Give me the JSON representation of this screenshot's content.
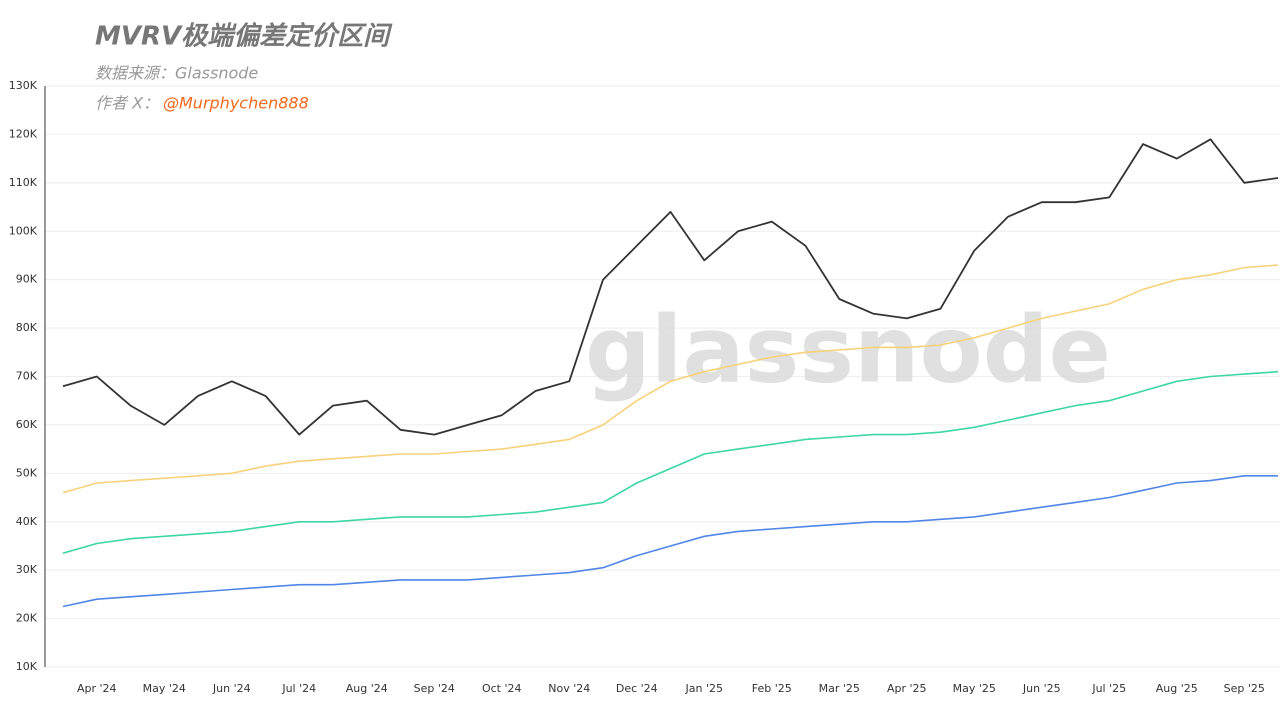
{
  "chart_data": {
    "type": "line",
    "title": "MVRV极端偏差定价区间",
    "source": "数据来源：Glassnode",
    "author_label": "作者 X：",
    "author_handle": "@Murphychen888",
    "watermark": "glassnode",
    "categories": [
      null,
      "Apr '24",
      null,
      "May '24",
      null,
      "Jun '24",
      null,
      "Jul '24",
      null,
      "Aug '24",
      null,
      "Sep '24",
      null,
      "Oct '24",
      null,
      "Nov '24",
      null,
      "Dec '24",
      null,
      "Jan '25",
      null,
      "Feb '25",
      null,
      "Mar '25",
      null,
      "Apr '25",
      null,
      "May '25",
      null,
      "Jun '25",
      null,
      "Jul '25",
      null,
      "Aug '25",
      null,
      "Sep '25",
      null
    ],
    "series": [
      {
        "color": "#333333",
        "values": [
          68000,
          70000,
          64000,
          60000,
          66000,
          69000,
          66000,
          58000,
          64000,
          65000,
          59000,
          58000,
          60000,
          62000,
          67000,
          69000,
          90000,
          97000,
          104000,
          94000,
          100000,
          102000,
          97000,
          86000,
          83000,
          82000,
          84000,
          96000,
          103000,
          106000,
          106000,
          107000,
          118000,
          115000,
          119000,
          110000,
          111000
        ]
      },
      {
        "color": "#f7d27a",
        "values": [
          46000,
          48000,
          48500,
          49000,
          49500,
          50000,
          51500,
          52500,
          53000,
          53500,
          54000,
          54000,
          54500,
          55000,
          56000,
          57000,
          60000,
          65000,
          69000,
          71000,
          72500,
          74000,
          75000,
          75500,
          76000,
          76000,
          76500,
          78000,
          80000,
          82000,
          83500,
          85000,
          88000,
          90000,
          91000,
          92500,
          93000
        ]
      },
      {
        "color": "#3ed6a6",
        "values": [
          33500,
          35500,
          36500,
          37000,
          37500,
          38000,
          39000,
          40000,
          40000,
          40500,
          41000,
          41000,
          41000,
          41500,
          42000,
          43000,
          44000,
          48000,
          51000,
          54000,
          55000,
          56000,
          57000,
          57500,
          58000,
          58000,
          58500,
          59500,
          61000,
          62500,
          64000,
          65000,
          67000,
          69000,
          70000,
          70500,
          71000
        ]
      },
      {
        "color": "#4f86e8",
        "values": [
          22500,
          24000,
          24500,
          25000,
          25500,
          26000,
          26500,
          27000,
          27000,
          27500,
          28000,
          28000,
          28000,
          28500,
          29000,
          29500,
          30500,
          33000,
          35000,
          37000,
          38000,
          38500,
          39000,
          39500,
          40000,
          40000,
          40500,
          41000,
          42000,
          43000,
          44000,
          45000,
          46500,
          48000,
          48500,
          49500,
          49500
        ]
      }
    ],
    "ylim": [
      10000,
      130000
    ],
    "yticks": [
      {
        "value": 10000,
        "label": "10K"
      },
      {
        "value": 20000,
        "label": "20K"
      },
      {
        "value": 30000,
        "label": "30K"
      },
      {
        "value": 40000,
        "label": "40K"
      },
      {
        "value": 50000,
        "label": "50K"
      },
      {
        "value": 60000,
        "label": "60K"
      },
      {
        "value": 70000,
        "label": "70K"
      },
      {
        "value": 80000,
        "label": "80K"
      },
      {
        "value": 90000,
        "label": "90K"
      },
      {
        "value": 100000,
        "label": "100K"
      },
      {
        "value": 110000,
        "label": "110K"
      },
      {
        "value": 120000,
        "label": "120K"
      },
      {
        "value": 130000,
        "label": "130K"
      }
    ],
    "grid": true
  }
}
